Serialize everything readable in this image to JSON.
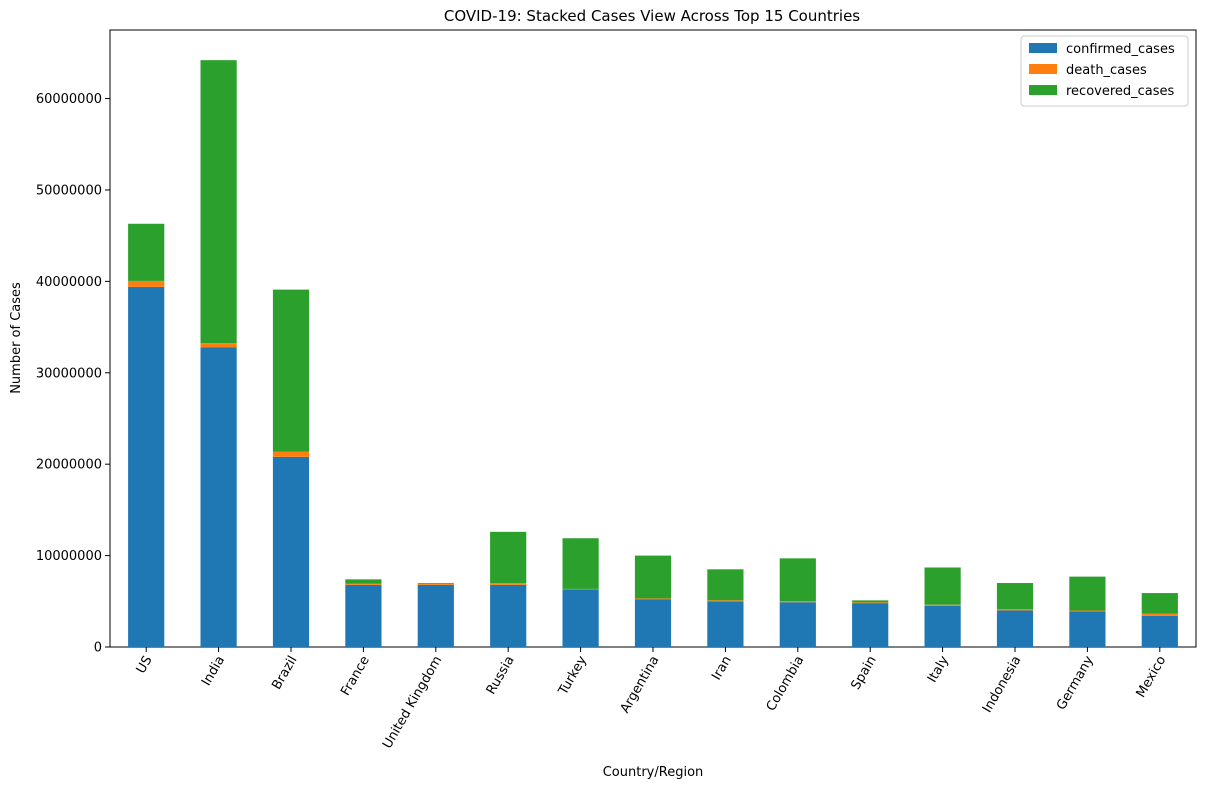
{
  "chart_data": {
    "type": "bar",
    "stacked": true,
    "title": "COVID-19: Stacked Cases View Across Top 15 Countries",
    "xlabel": "Country/Region",
    "ylabel": "Number of Cases",
    "ylim": [
      0,
      67500000
    ],
    "yticks": [
      0,
      10000000,
      20000000,
      30000000,
      40000000,
      50000000,
      60000000
    ],
    "ytick_labels": [
      "0",
      "10000000",
      "20000000",
      "30000000",
      "40000000",
      "50000000",
      "60000000"
    ],
    "categories": [
      "US",
      "India",
      "Brazil",
      "France",
      "United Kingdom",
      "Russia",
      "Turkey",
      "Argentina",
      "Iran",
      "Colombia",
      "Spain",
      "Italy",
      "Indonesia",
      "Germany",
      "Mexico"
    ],
    "series": [
      {
        "name": "confirmed_cases",
        "color": "#1f77b4",
        "values": [
          39400000,
          32800000,
          20800000,
          6800000,
          6800000,
          6800000,
          6300000,
          5200000,
          5000000,
          4900000,
          4800000,
          4500000,
          4000000,
          3900000,
          3400000
        ]
      },
      {
        "name": "death_cases",
        "color": "#ff7f0e",
        "values": [
          650000,
          440000,
          580000,
          115000,
          135000,
          180000,
          57000,
          113000,
          108000,
          125000,
          85000,
          130000,
          134000,
          92000,
          260000
        ]
      },
      {
        "name": "recovered_cases",
        "color": "#2ca02c",
        "values": [
          6250000,
          30960000,
          17720000,
          485000,
          65000,
          5620000,
          5543000,
          4687000,
          3392000,
          4675000,
          215000,
          4070000,
          2866000,
          3708000,
          2240000
        ]
      }
    ],
    "legend": {
      "position": "top-right"
    },
    "grid": false,
    "xtick_rotation": -60
  }
}
